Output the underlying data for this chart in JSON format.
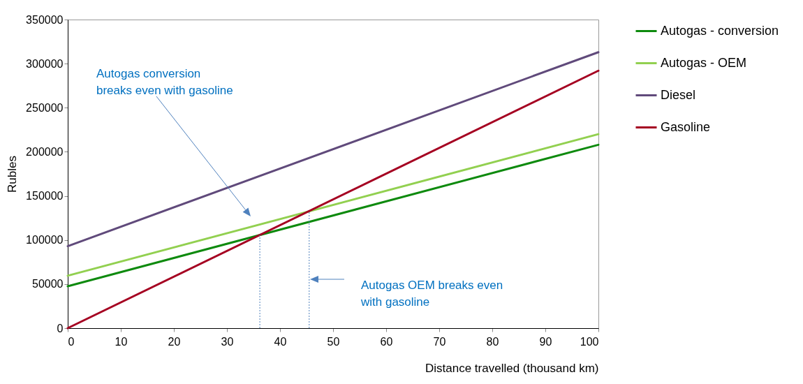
{
  "chart_data": {
    "type": "line",
    "xlabel": "Distance travelled (thousand km)",
    "ylabel": "Rubles",
    "xlim": [
      0,
      100
    ],
    "xticks": [
      0,
      10,
      20,
      30,
      40,
      50,
      60,
      70,
      80,
      90,
      100
    ],
    "ylim": [
      0,
      350000
    ],
    "yticks": [
      0,
      50000,
      100000,
      150000,
      200000,
      250000,
      300000,
      350000
    ],
    "grid": false,
    "legend": "right",
    "line_style": "solid",
    "series": [
      {
        "name": "Autogas - conversion",
        "color": "#0e8a0e",
        "x": [
          0,
          100
        ],
        "values": [
          47500,
          208000
        ]
      },
      {
        "name": "Autogas - OEM",
        "color": "#92d050",
        "x": [
          0,
          100
        ],
        "values": [
          59500,
          220000
        ]
      },
      {
        "name": "Diesel",
        "color": "#604a7b",
        "x": [
          0,
          100
        ],
        "values": [
          93000,
          313000
        ]
      },
      {
        "name": "Gasoline",
        "color": "#a50021",
        "x": [
          0,
          100
        ],
        "values": [
          0,
          292000
        ]
      },
      {
        "color": "#4f81bd",
        "x": [
          36.2,
          36.2
        ],
        "values": [
          0,
          105700
        ],
        "line_style": "dotted"
      },
      {
        "color": "#4f81bd",
        "x": [
          45.5,
          45.5
        ],
        "values": [
          0,
          132900
        ],
        "line_style": "dotted"
      }
    ],
    "annotations": [
      "Autogas  conversion\nbreaks even with gasoline",
      "Autogas OEM breaks even\nwith gasoline"
    ]
  }
}
